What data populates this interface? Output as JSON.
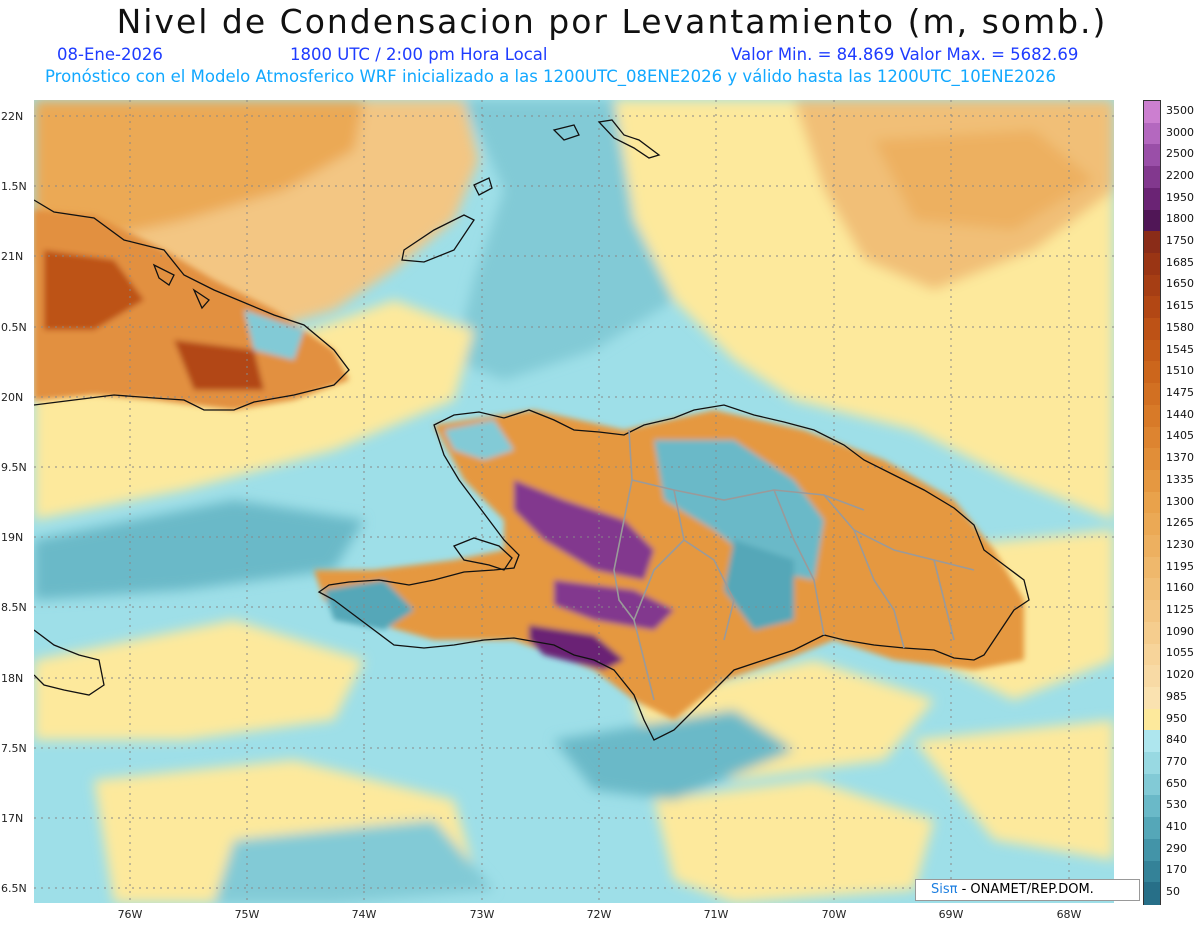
{
  "title": "Nivel de Condensacion por Levantamiento (m, somb.)",
  "date": "08-Ene-2026",
  "time": "1800 UTC / 2:00 pm Hora Local",
  "min_max": "Valor Min. = 84.869   Valor Max. = 5682.69",
  "forecast_line": "Pronóstico con el Modelo Atmosferico WRF inicializado a las 1200UTC_08ENE2026 y válido hasta las  1200UTC_10ENE2026",
  "credit": {
    "brand": "Sisπ",
    "org": " - ONAMET/REP.DOM."
  },
  "lat_labels": [
    "22N",
    "1.5N",
    "21N",
    "0.5N",
    "20N",
    "9.5N",
    "19N",
    "8.5N",
    "18N",
    "7.5N",
    "17N",
    "6.5N"
  ],
  "lon_labels": [
    "76W",
    "75W",
    "74W",
    "73W",
    "72W",
    "71W",
    "70W",
    "69W",
    "68W"
  ],
  "colorbar": {
    "labels": [
      "3500",
      "3000",
      "2500",
      "2200",
      "1950",
      "1800",
      "1750",
      "1685",
      "1650",
      "1615",
      "1580",
      "1545",
      "1510",
      "1475",
      "1440",
      "1405",
      "1370",
      "1335",
      "1300",
      "1265",
      "1230",
      "1195",
      "1160",
      "1125",
      "1090",
      "1055",
      "1020",
      "985",
      "950",
      "840",
      "770",
      "650",
      "530",
      "410",
      "290",
      "170",
      "50"
    ],
    "colors": [
      "#cc7fd0",
      "#b468bf",
      "#9a4fa8",
      "#82388e",
      "#6a2374",
      "#501656",
      "#8a2c18",
      "#9a3514",
      "#a63e14",
      "#b24714",
      "#bd5216",
      "#c55c18",
      "#cc661c",
      "#d27022",
      "#d87a28",
      "#dd8430",
      "#e18e38",
      "#e59841",
      "#e9a24b",
      "#eba955",
      "#edb060",
      "#efb86c",
      "#f1bf77",
      "#f3c683",
      "#f5cd8e",
      "#f7d49a",
      "#f8daa5",
      "#fae2b0",
      "#fde99c",
      "#aee6ee",
      "#98d9e2",
      "#82cad6",
      "#6ab9c8",
      "#55a7b8",
      "#4394a8",
      "#348298",
      "#276f88"
    ]
  },
  "regions": {
    "cuba": "Cuba",
    "hispaniola": "La Española",
    "bahamas": "Bahamas",
    "jamaica": "Jamaica",
    "gonave": "Gonâve"
  }
}
